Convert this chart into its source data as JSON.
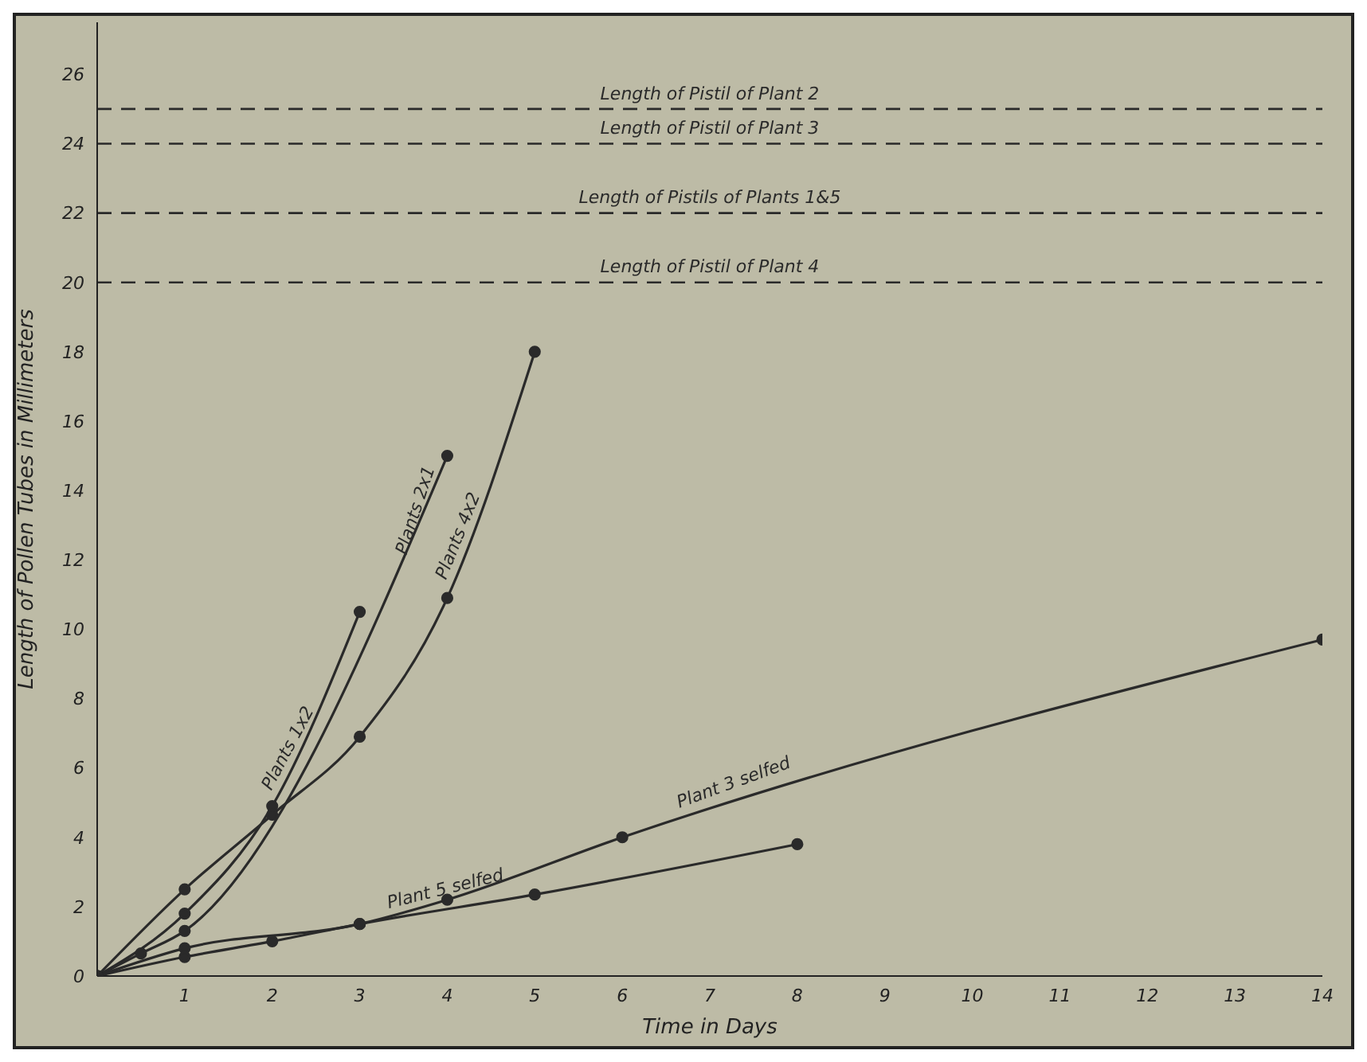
{
  "chart_data": {
    "type": "line",
    "xlabel": "Time in Days",
    "ylabel": "Length of Pollen Tubes in Millimeters",
    "xlim": [
      0,
      14
    ],
    "xticks": [
      1,
      2,
      3,
      4,
      5,
      6,
      7,
      8,
      9,
      10,
      11,
      12,
      13,
      14
    ],
    "ylim": [
      0,
      27.5
    ],
    "yticks": [
      0,
      2,
      4,
      6,
      8,
      10,
      12,
      14,
      16,
      18,
      20,
      22,
      24,
      26
    ],
    "marker": "circle",
    "line_style": "solid",
    "series": [
      {
        "name": "Plants 1x2",
        "color": "#2a2a2a",
        "x": [
          0,
          1,
          2,
          3
        ],
        "values": [
          0,
          1.8,
          4.9,
          10.5
        ]
      },
      {
        "name": "Plants 2x1",
        "color": "#2a2a2a",
        "x": [
          0,
          0.5,
          1,
          4
        ],
        "values": [
          0,
          0.65,
          1.3,
          15
        ]
      },
      {
        "name": "Plants 4x2",
        "color": "#2a2a2a",
        "x": [
          0,
          1,
          2,
          3,
          4,
          5
        ],
        "values": [
          0,
          2.5,
          4.65,
          6.9,
          10.9,
          18
        ]
      },
      {
        "name": "Plant 3 selfed",
        "color": "#2a2a2a",
        "x": [
          0,
          1,
          3,
          4,
          6,
          14
        ],
        "values": [
          0,
          0.8,
          1.5,
          2.2,
          4,
          9.7
        ]
      },
      {
        "name": "Plant 5 selfed",
        "color": "#2a2a2a",
        "x": [
          0,
          1,
          2,
          3,
          5,
          8
        ],
        "values": [
          0,
          0.55,
          1,
          1.5,
          2.35,
          3.8
        ]
      }
    ],
    "ref_lines": [
      {
        "axis": "y",
        "value": 25,
        "label": "Length of Pistil of Plant 2",
        "color": "#2a2a2a",
        "line_style": "dashed"
      },
      {
        "axis": "y",
        "value": 24,
        "label": "Length of Pistil of Plant 3",
        "color": "#2a2a2a",
        "line_style": "dashed"
      },
      {
        "axis": "y",
        "value": 22,
        "label": "Length of Pistils of Plants 1&5",
        "color": "#2a2a2a",
        "line_style": "dashed"
      },
      {
        "axis": "y",
        "value": 20,
        "label": "Length of Pistil of Plant 4",
        "color": "#2a2a2a",
        "line_style": "dashed"
      }
    ]
  }
}
